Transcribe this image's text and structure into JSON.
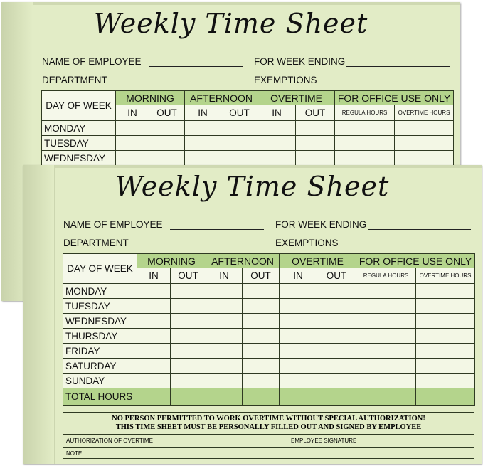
{
  "sheet": {
    "title": "Weekly Time Sheet",
    "name_label": "NAME OF EMPLOYEE",
    "week_label": "FOR WEEK ENDING",
    "dept_label": "DEPARTMENT",
    "exemptions_label": "EXEMPTIONS",
    "headers": {
      "day": "DAY OF WEEK",
      "morning": "MORNING",
      "afternoon": "AFTERNOON",
      "overtime": "OVERTIME",
      "office": "FOR OFFICE USE ONLY",
      "in": "IN",
      "out": "OUT",
      "regular": "REGULA HOURS",
      "overtime_hours": "OVERTIME HOURS"
    },
    "days": [
      "MONDAY",
      "TUESDAY",
      "WEDNESDAY",
      "THURSDAY",
      "FRIDAY",
      "SATURDAY",
      "SUNDAY"
    ],
    "total": "TOTAL HOURS",
    "notice1": "NO PERSON PERMITTED TO WORK OVERTIME WITHOUT SPECIAL AUTHORIZATION!",
    "notice2": "THIS TIME SHEET MUST BE PERSONALLY FILLED OUT AND SIGNED BY EMPLOYEE",
    "auth_label": "AUTHORIZATION OF OVERTIME",
    "signature_label": "EMPLOYEE SIGNATURE",
    "note_label": "NOTE"
  },
  "colors": {
    "paper": "#e2ecc6",
    "header_green": "#b4d48c",
    "cell": "#f3f7e5"
  }
}
